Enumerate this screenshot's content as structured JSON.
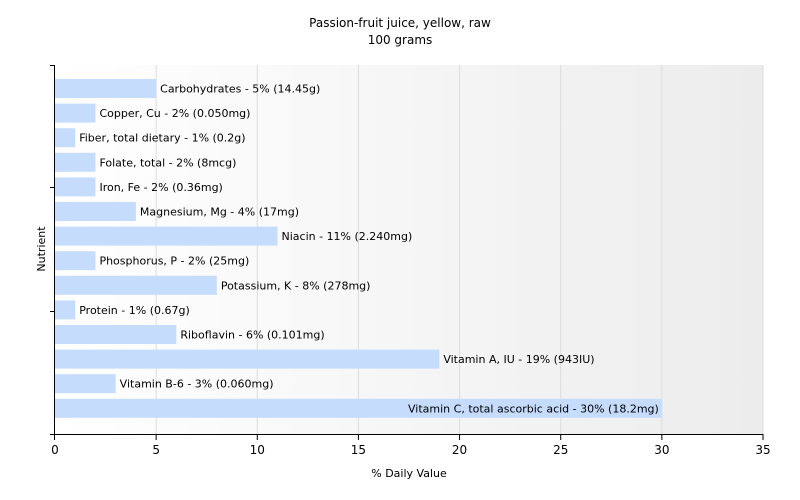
{
  "chart_data": {
    "type": "bar",
    "orientation": "horizontal",
    "title": "Passion-fruit juice, yellow, raw",
    "subtitle": "100 grams",
    "xlabel": "% Daily Value",
    "ylabel": "Nutrient",
    "xlim": [
      0,
      35
    ],
    "xticks": [
      0,
      5,
      10,
      15,
      20,
      25,
      30,
      35
    ],
    "grid": true,
    "bar_color": "#c6dcfd",
    "categories": [
      "Carbohydrates",
      "Copper, Cu",
      "Fiber, total dietary",
      "Folate, total",
      "Iron, Fe",
      "Magnesium, Mg",
      "Niacin",
      "Phosphorus, P",
      "Potassium, K",
      "Protein",
      "Riboflavin",
      "Vitamin A, IU",
      "Vitamin B-6",
      "Vitamin C, total ascorbic acid"
    ],
    "values": [
      5,
      2,
      1,
      2,
      2,
      4,
      11,
      2,
      8,
      1,
      6,
      19,
      3,
      30
    ],
    "labels": [
      "Carbohydrates - 5% (14.45g)",
      "Copper, Cu - 2% (0.050mg)",
      "Fiber, total dietary - 1% (0.2g)",
      "Folate, total - 2% (8mcg)",
      "Iron, Fe - 2% (0.36mg)",
      "Magnesium, Mg - 4% (17mg)",
      "Niacin - 11% (2.240mg)",
      "Phosphorus, P - 2% (25mg)",
      "Potassium, K - 8% (278mg)",
      "Protein - 1% (0.67g)",
      "Riboflavin - 6% (0.101mg)",
      "Vitamin A, IU - 19% (943IU)",
      "Vitamin B-6 - 3% (0.060mg)",
      "Vitamin C, total ascorbic acid - 30% (18.2mg)"
    ]
  }
}
